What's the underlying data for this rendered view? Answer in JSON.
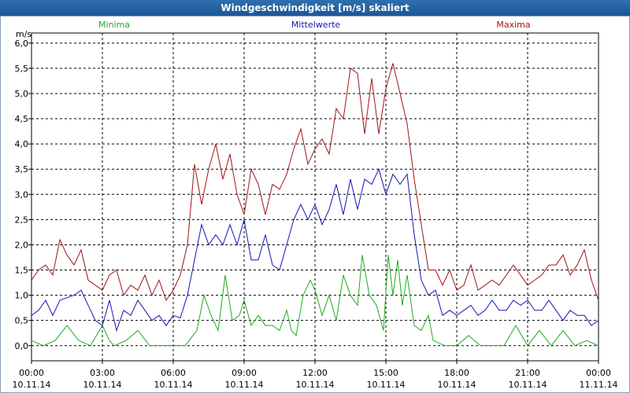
{
  "window": {
    "title": "Windgeschwindigkeit [m/s] skaliert"
  },
  "chart_data": {
    "type": "line",
    "title": "Windgeschwindigkeit [m/s] skaliert",
    "ylabel": "m/s",
    "ylim": [
      -0.3,
      6.2
    ],
    "yticks": [
      0,
      0.5,
      1,
      1.5,
      2,
      2.5,
      3,
      3.5,
      4,
      4.5,
      5,
      5.5,
      6
    ],
    "ytick_labels": [
      "0,0",
      "0,5",
      "1,0",
      "1,5",
      "2,0",
      "2,5",
      "3,0",
      "3,5",
      "4,0",
      "4,5",
      "5,0",
      "5,5",
      "6,0"
    ],
    "xlim_hours": [
      0,
      24
    ],
    "xticks": [
      {
        "hour": 0,
        "time": "00:00",
        "date": "10.11.14"
      },
      {
        "hour": 3,
        "time": "03:00",
        "date": "10.11.14"
      },
      {
        "hour": 6,
        "time": "06:00",
        "date": "10.11.14"
      },
      {
        "hour": 9,
        "time": "09:00",
        "date": "10.11.14"
      },
      {
        "hour": 12,
        "time": "12:00",
        "date": "10.11.14"
      },
      {
        "hour": 15,
        "time": "15:00",
        "date": "10.11.14"
      },
      {
        "hour": 18,
        "time": "18:00",
        "date": "10.11.14"
      },
      {
        "hour": 21,
        "time": "21:00",
        "date": "10.11.14"
      },
      {
        "hour": 24,
        "time": "00:00",
        "date": "11.11.14"
      }
    ],
    "grid": true,
    "series": [
      {
        "name": "Minima",
        "color": "#1faa1f",
        "x": [
          0,
          0.5,
          1,
          1.5,
          2,
          2.5,
          3,
          3.3,
          3.5,
          4,
          4.5,
          5,
          5.5,
          6,
          6.5,
          7,
          7.3,
          7.6,
          7.9,
          8.2,
          8.5,
          8.8,
          9,
          9.3,
          9.6,
          9.9,
          10.2,
          10.5,
          10.8,
          11,
          11.2,
          11.5,
          11.8,
          12,
          12.3,
          12.6,
          12.9,
          13.2,
          13.5,
          13.8,
          14,
          14.3,
          14.6,
          14.9,
          15.1,
          15.3,
          15.5,
          15.7,
          15.9,
          16.2,
          16.5,
          16.8,
          17,
          17.5,
          18,
          18.5,
          19,
          19.5,
          20,
          20.5,
          21,
          21.5,
          22,
          22.5,
          23,
          23.5,
          24
        ],
        "values": [
          0.1,
          0,
          0.1,
          0.4,
          0.1,
          0,
          0.4,
          0.1,
          0,
          0.1,
          0.3,
          0,
          0,
          0,
          0,
          0.3,
          1,
          0.6,
          0.3,
          1.4,
          0.5,
          0.6,
          0.9,
          0.4,
          0.6,
          0.4,
          0.4,
          0.3,
          0.7,
          0.3,
          0.2,
          1.0,
          1.3,
          1.1,
          0.6,
          1.0,
          0.5,
          1.4,
          1.0,
          0.8,
          1.8,
          1.0,
          0.8,
          0.3,
          1.8,
          1.0,
          1.7,
          0.8,
          1.4,
          0.4,
          0.3,
          0.6,
          0.1,
          0,
          0,
          0.2,
          0,
          0,
          0,
          0.4,
          0,
          0.3,
          0,
          0.3,
          0,
          0.1,
          0
        ]
      },
      {
        "name": "Mittelwerte",
        "color": "#1414b4",
        "x": [
          0,
          0.3,
          0.6,
          0.9,
          1.2,
          1.5,
          1.8,
          2.1,
          2.4,
          2.7,
          3,
          3.3,
          3.6,
          3.9,
          4.2,
          4.5,
          4.8,
          5.1,
          5.4,
          5.7,
          6,
          6.3,
          6.6,
          6.9,
          7.2,
          7.5,
          7.8,
          8.1,
          8.4,
          8.7,
          9,
          9.3,
          9.6,
          9.9,
          10.2,
          10.5,
          10.8,
          11.1,
          11.4,
          11.7,
          12,
          12.3,
          12.6,
          12.9,
          13.2,
          13.5,
          13.8,
          14.1,
          14.4,
          14.7,
          15,
          15.3,
          15.6,
          15.9,
          16.2,
          16.5,
          16.8,
          17.1,
          17.4,
          17.7,
          18,
          18.3,
          18.6,
          18.9,
          19.2,
          19.5,
          19.8,
          20.1,
          20.4,
          20.7,
          21,
          21.3,
          21.6,
          21.9,
          22.2,
          22.5,
          22.8,
          23.1,
          23.4,
          23.7,
          24
        ],
        "values": [
          0.6,
          0.7,
          0.9,
          0.6,
          0.9,
          0.95,
          1.0,
          1.1,
          0.8,
          0.5,
          0.4,
          0.9,
          0.3,
          0.7,
          0.6,
          0.9,
          0.7,
          0.5,
          0.6,
          0.4,
          0.6,
          0.55,
          1.0,
          1.7,
          2.4,
          2.0,
          2.2,
          2.0,
          2.4,
          2.0,
          2.5,
          1.7,
          1.7,
          2.2,
          1.6,
          1.5,
          2.0,
          2.5,
          2.8,
          2.5,
          2.8,
          2.4,
          2.7,
          3.2,
          2.6,
          3.3,
          2.7,
          3.3,
          3.2,
          3.5,
          3.0,
          3.4,
          3.2,
          3.4,
          2.2,
          1.3,
          1.0,
          1.1,
          0.6,
          0.7,
          0.6,
          0.7,
          0.8,
          0.6,
          0.7,
          0.9,
          0.7,
          0.7,
          0.9,
          0.8,
          0.9,
          0.7,
          0.7,
          0.9,
          0.7,
          0.5,
          0.7,
          0.6,
          0.6,
          0.4,
          0.5
        ]
      },
      {
        "name": "Maxima",
        "color": "#a01414",
        "x": [
          0,
          0.3,
          0.6,
          0.9,
          1.2,
          1.5,
          1.8,
          2.1,
          2.4,
          2.7,
          3,
          3.3,
          3.6,
          3.9,
          4.2,
          4.5,
          4.8,
          5.1,
          5.4,
          5.7,
          6,
          6.3,
          6.6,
          6.9,
          7.2,
          7.5,
          7.8,
          8.1,
          8.4,
          8.7,
          9,
          9.3,
          9.6,
          9.9,
          10.2,
          10.5,
          10.8,
          11.1,
          11.4,
          11.7,
          12,
          12.3,
          12.6,
          12.9,
          13.2,
          13.5,
          13.8,
          14.1,
          14.4,
          14.7,
          15,
          15.3,
          15.6,
          15.9,
          16.2,
          16.5,
          16.8,
          17.1,
          17.4,
          17.7,
          18,
          18.3,
          18.6,
          18.9,
          19.2,
          19.5,
          19.8,
          20.1,
          20.4,
          20.7,
          21,
          21.3,
          21.6,
          21.9,
          22.2,
          22.5,
          22.8,
          23.1,
          23.4,
          23.7,
          24
        ],
        "values": [
          1.3,
          1.5,
          1.6,
          1.4,
          2.1,
          1.8,
          1.6,
          1.9,
          1.3,
          1.2,
          1.1,
          1.4,
          1.5,
          1.0,
          1.2,
          1.1,
          1.4,
          1.0,
          1.3,
          0.9,
          1.1,
          1.4,
          2.0,
          3.6,
          2.8,
          3.5,
          4.0,
          3.3,
          3.8,
          3.0,
          2.6,
          3.5,
          3.2,
          2.6,
          3.2,
          3.1,
          3.4,
          3.9,
          4.3,
          3.6,
          3.9,
          4.1,
          3.8,
          4.7,
          4.5,
          5.5,
          5.4,
          4.2,
          5.3,
          4.2,
          5.1,
          5.6,
          5.0,
          4.4,
          3.3,
          2.4,
          1.5,
          1.5,
          1.2,
          1.5,
          1.1,
          1.2,
          1.6,
          1.1,
          1.2,
          1.3,
          1.2,
          1.4,
          1.6,
          1.4,
          1.2,
          1.3,
          1.4,
          1.6,
          1.6,
          1.8,
          1.4,
          1.6,
          1.9,
          1.3,
          0.9
        ]
      }
    ]
  }
}
